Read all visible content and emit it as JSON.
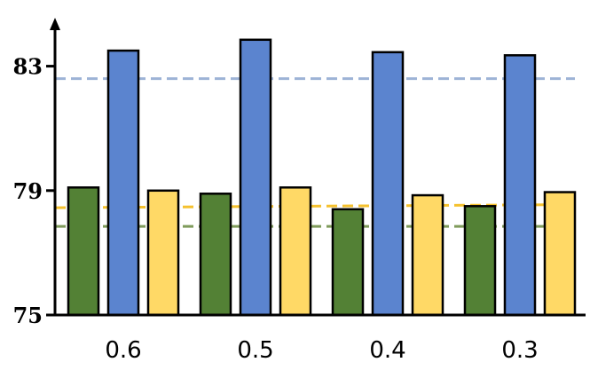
{
  "chart_data": {
    "type": "bar",
    "categories": [
      "0.6",
      "0.5",
      "0.4",
      "0.3"
    ],
    "series": [
      {
        "values": [
          79.1,
          78.9,
          78.4,
          78.5
        ],
        "color": "#538135"
      },
      {
        "values": [
          83.5,
          83.85,
          83.45,
          83.35
        ],
        "color": "#5b84cf"
      },
      {
        "values": [
          79.0,
          79.1,
          78.85,
          78.95
        ],
        "color": "#ffd966"
      }
    ],
    "reference_lines": [
      {
        "value": 82.6,
        "color": "#9db3d6"
      },
      {
        "value": 78.45,
        "value_end": 78.55,
        "color": "#f5c12e"
      },
      {
        "value": 77.85,
        "color": "#7f9b5b"
      }
    ],
    "yticks": [
      "75",
      "79",
      "83"
    ],
    "ylim": [
      75,
      84.5
    ],
    "title": "",
    "xlabel": "",
    "ylabel": "",
    "grid": false,
    "legend": "none"
  }
}
